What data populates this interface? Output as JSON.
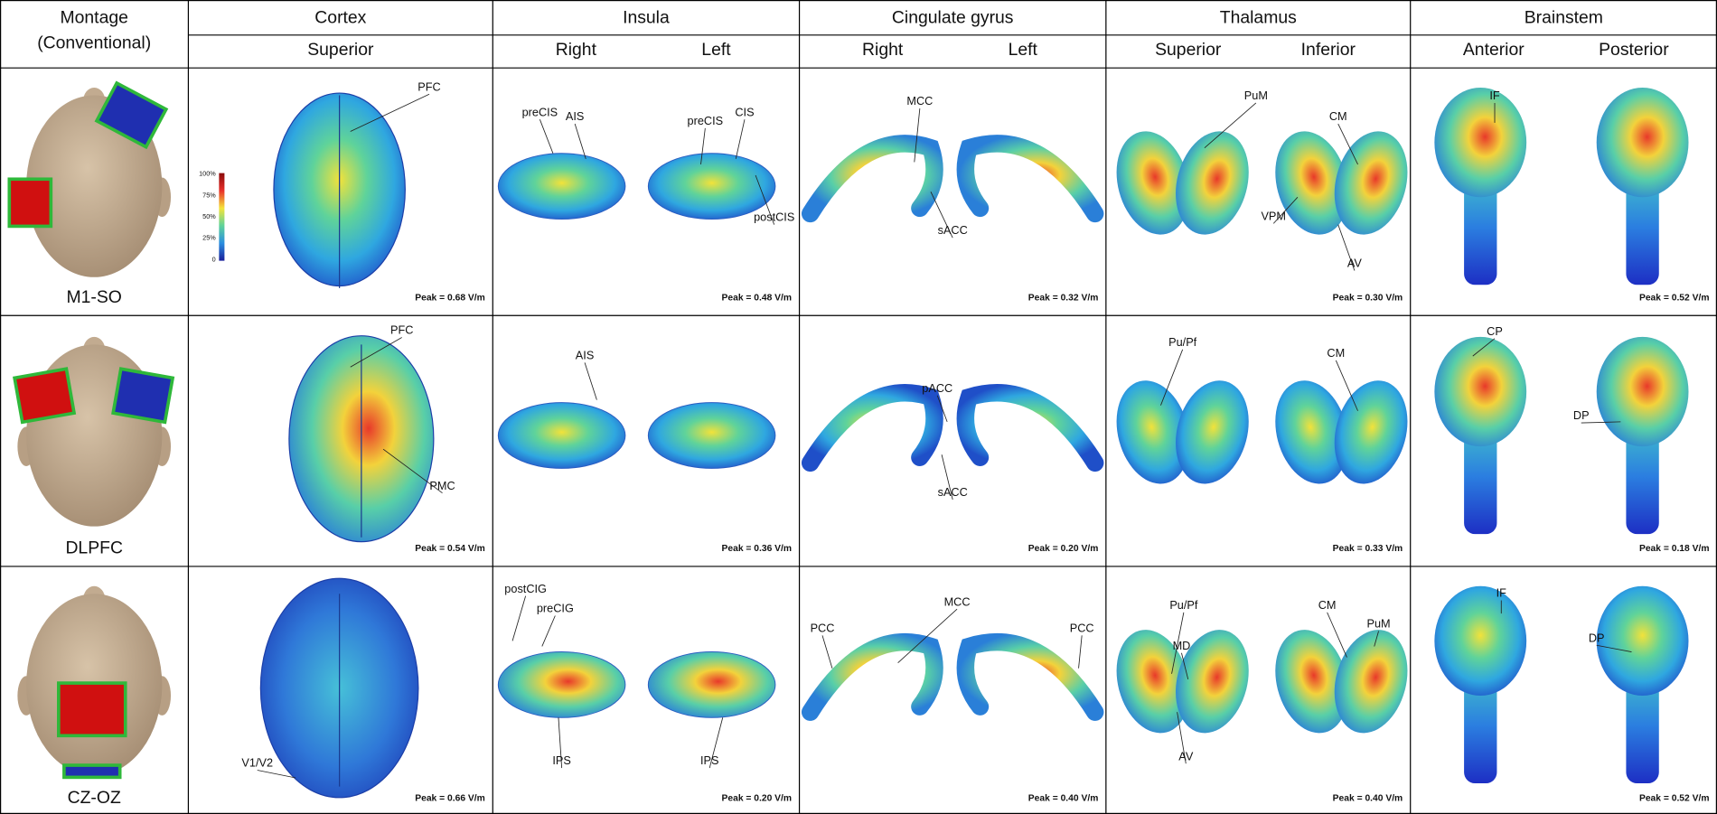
{
  "header": {
    "montage": [
      "Montage",
      "(Conventional)"
    ],
    "columns": [
      {
        "title": "Cortex",
        "views": [
          "Superior"
        ]
      },
      {
        "title": "Insula",
        "views": [
          "Right",
          "Left"
        ]
      },
      {
        "title": "Cingulate gyrus",
        "views": [
          "Right",
          "Left"
        ]
      },
      {
        "title": "Thalamus",
        "views": [
          "Superior",
          "Inferior"
        ]
      },
      {
        "title": "Brainstem",
        "views": [
          "Anterior",
          "Posterior"
        ]
      }
    ]
  },
  "colorbar": [
    "100%",
    "75%",
    "50%",
    "25%",
    "0"
  ],
  "rows": [
    {
      "montage": "M1-SO",
      "peaks": [
        "Peak = 0.68 V/m",
        "Peak = 0.48 V/m",
        "Peak = 0.32 V/m",
        "Peak = 0.30 V/m",
        "Peak = 0.52 V/m"
      ],
      "annotations": [
        [
          "PFC"
        ],
        [
          "preCIS",
          "AIS",
          "preCIS",
          "CIS",
          "postCIS"
        ],
        [
          "MCC",
          "sACC"
        ],
        [
          "PuM",
          "CM",
          "VPM",
          "AV"
        ],
        [
          "IF"
        ]
      ]
    },
    {
      "montage": "DLPFC",
      "peaks": [
        "Peak = 0.54 V/m",
        "Peak = 0.36 V/m",
        "Peak = 0.20 V/m",
        "Peak = 0.33 V/m",
        "Peak = 0.18 V/m"
      ],
      "annotations": [
        [
          "PFC",
          "PMC"
        ],
        [
          "AIS"
        ],
        [
          "pACC",
          "sACC"
        ],
        [
          "Pu/Pf",
          "CM"
        ],
        [
          "CP",
          "DP"
        ]
      ]
    },
    {
      "montage": "CZ-OZ",
      "peaks": [
        "Peak = 0.66 V/m",
        "Peak = 0.20 V/m",
        "Peak = 0.40 V/m",
        "Peak = 0.40 V/m",
        "Peak = 0.52 V/m"
      ],
      "annotations": [
        [
          "V1/V2"
        ],
        [
          "postCIG",
          "preCIG",
          "IPS",
          "IPS"
        ],
        [
          "MCC",
          "PCC",
          "PCC"
        ],
        [
          "Pu/Pf",
          "MD",
          "AV",
          "CM",
          "PuM"
        ],
        [
          "IF",
          "DP"
        ]
      ]
    }
  ]
}
